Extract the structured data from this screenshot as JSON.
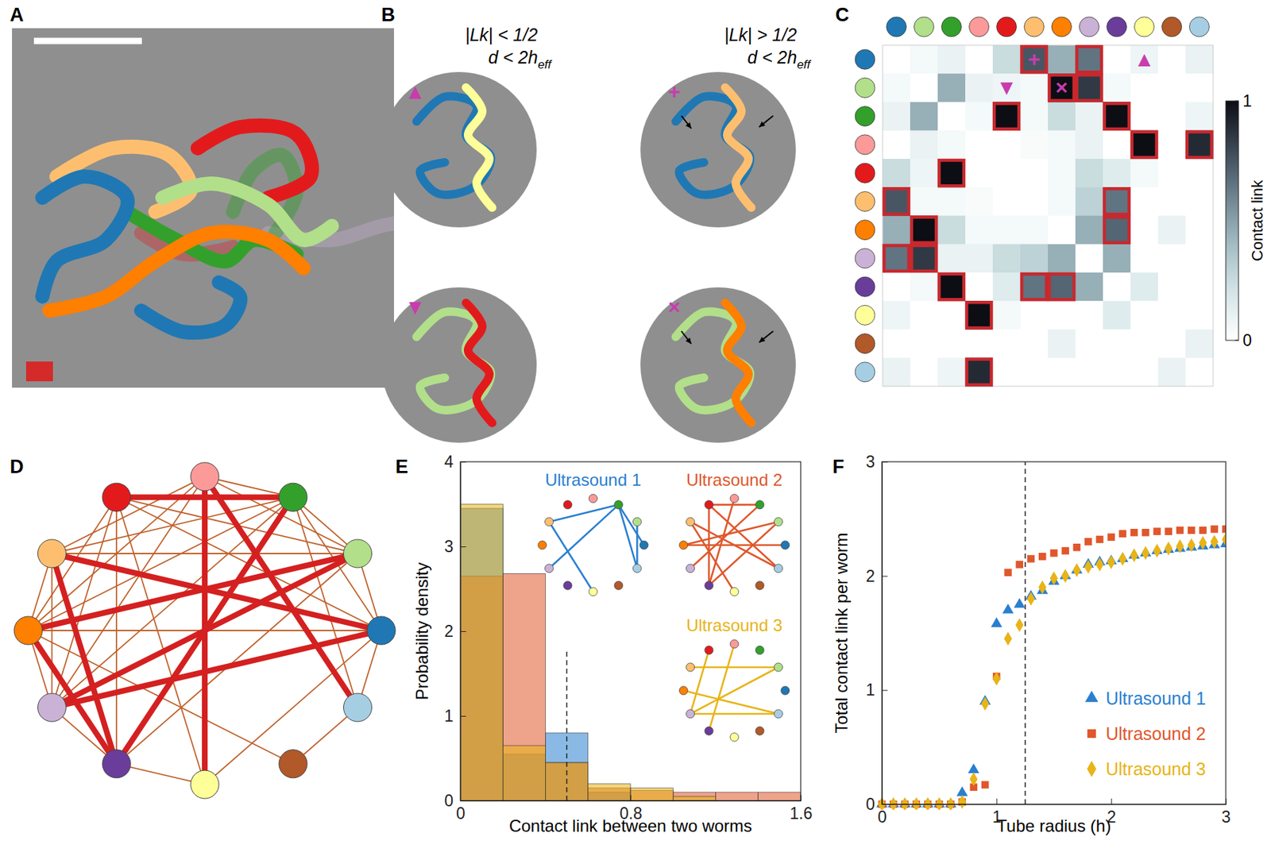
{
  "panels": [
    "A",
    "B",
    "C",
    "D",
    "E",
    "F"
  ],
  "worm_colors": [
    "#1f78b4",
    "#b2df8a",
    "#33a02c",
    "#fb9a99",
    "#e31a1c",
    "#fdbf6f",
    "#ff7f00",
    "#cab2d6",
    "#6a3d9a",
    "#ffff99",
    "#b15928",
    "#a6cee3"
  ],
  "panel_b": {
    "headers": [
      {
        "lk": "|Lk| < 1/2",
        "d": "d < 2h",
        "d_sub": "eff"
      },
      {
        "lk": "|Lk| > 1/2",
        "d": "d < 2h",
        "d_sub": "eff"
      }
    ],
    "examples": [
      {
        "marker": "▲",
        "pair": [
          9,
          0
        ],
        "column": 0
      },
      {
        "marker": "▼",
        "pair": [
          4,
          1
        ],
        "column": 0
      },
      {
        "marker": "+",
        "pair": [
          5,
          0
        ],
        "column": 1
      },
      {
        "marker": "×",
        "pair": [
          6,
          1
        ],
        "column": 1
      }
    ]
  },
  "chart_data": [
    {
      "type": "heatmap",
      "values": [
        [
          0,
          0.05,
          0.1,
          0,
          0.25,
          0.75,
          0.45,
          0.65,
          0,
          0.08,
          0,
          0.1
        ],
        [
          0.05,
          0,
          0.45,
          0.1,
          0.08,
          0.05,
          1,
          0.85,
          0.05,
          0,
          0,
          0
        ],
        [
          0.1,
          0.45,
          0,
          0.05,
          1,
          0.05,
          0.25,
          0.1,
          1,
          0,
          0,
          0.08
        ],
        [
          0,
          0.1,
          0.05,
          0,
          0,
          0.03,
          0.05,
          0.1,
          0,
          1,
          0,
          0.9
        ],
        [
          0.25,
          0.08,
          1,
          0,
          0,
          0,
          0.05,
          0.25,
          0.15,
          0.05,
          0,
          0
        ],
        [
          0.75,
          0.05,
          0.05,
          0.03,
          0,
          0,
          0.05,
          0.3,
          0.65,
          0,
          0,
          0
        ],
        [
          0.45,
          1,
          0.25,
          0.05,
          0.05,
          0.05,
          0,
          0.45,
          0.7,
          0,
          0.1,
          0
        ],
        [
          0.65,
          0.85,
          0.1,
          0.1,
          0.25,
          0.3,
          0.45,
          0,
          0.45,
          0,
          0,
          0
        ],
        [
          0,
          0.05,
          1,
          0,
          0.15,
          0.65,
          0.7,
          0.45,
          0,
          0.15,
          0,
          0
        ],
        [
          0.08,
          0,
          0,
          1,
          0.05,
          0,
          0,
          0,
          0.15,
          0,
          0,
          0
        ],
        [
          0,
          0,
          0,
          0,
          0,
          0,
          0.1,
          0,
          0,
          0,
          0,
          0.1
        ],
        [
          0.1,
          0,
          0.08,
          0.9,
          0,
          0,
          0,
          0,
          0,
          0,
          0.1,
          0
        ]
      ],
      "threshold": 0.5,
      "colorbar": {
        "range": [
          0,
          1
        ],
        "ticks": [
          0,
          1
        ],
        "label": "Contact link"
      },
      "markers": [
        {
          "symbol": "+",
          "row": 0,
          "col": 5
        },
        {
          "symbol": "▲",
          "row": 0,
          "col": 9
        },
        {
          "symbol": "▼",
          "row": 1,
          "col": 4
        },
        {
          "symbol": "×",
          "row": 1,
          "col": 6
        }
      ]
    },
    {
      "type": "network"
    },
    {
      "type": "histogram",
      "bins": [
        0,
        0.2,
        0.4,
        0.6,
        0.8,
        1.0,
        1.2,
        1.4,
        1.6
      ],
      "series": [
        {
          "name": "Ultrasound 1",
          "color": "#2a7fd0",
          "values": [
            3.45,
            0.55,
            0.8,
            0.1,
            0,
            0,
            0,
            0
          ],
          "edges": [
            [
              5,
              2
            ],
            [
              2,
              0
            ],
            [
              2,
              11
            ],
            [
              7,
              2
            ],
            [
              9,
              5
            ],
            [
              1,
              11
            ]
          ]
        },
        {
          "name": "Ultrasound 2",
          "color": "#e0572b",
          "values": [
            2.65,
            2.68,
            0.45,
            0.15,
            0.12,
            0.1,
            0.1,
            0.1
          ],
          "edges": [
            [
              4,
              2
            ],
            [
              3,
              8
            ],
            [
              6,
              1
            ],
            [
              6,
              0
            ],
            [
              5,
              11
            ],
            [
              4,
              11
            ],
            [
              7,
              2
            ],
            [
              8,
              1
            ],
            [
              8,
              4
            ],
            [
              5,
              9
            ]
          ]
        },
        {
          "name": "Ultrasound 3",
          "color": "#e8b417",
          "values": [
            3.5,
            0.65,
            0.45,
            0.2,
            0.15,
            0.05,
            0,
            0
          ],
          "edges": [
            [
              5,
              1
            ],
            [
              7,
              1
            ],
            [
              7,
              11
            ],
            [
              8,
              3
            ],
            [
              7,
              4
            ],
            [
              6,
              11
            ]
          ]
        }
      ],
      "xlim": [
        0,
        1.6
      ],
      "xticks": [
        0,
        0.8,
        1.6
      ],
      "ylim": [
        0,
        4
      ],
      "yticks": [
        0,
        1,
        2,
        3,
        4
      ],
      "x_label": "Contact link between two worms",
      "y_label": "Probability density",
      "threshold_line": {
        "x": 0.5,
        "ymax": 1.8
      }
    },
    {
      "type": "scatter",
      "x": [
        0,
        0.1,
        0.2,
        0.3,
        0.4,
        0.5,
        0.6,
        0.7,
        0.8,
        0.9,
        1.0,
        1.1,
        1.2,
        1.3,
        1.4,
        1.5,
        1.6,
        1.7,
        1.8,
        1.9,
        2.0,
        2.1,
        2.2,
        2.3,
        2.4,
        2.5,
        2.6,
        2.7,
        2.8,
        2.9,
        3.0
      ],
      "series": [
        {
          "name": "Ultrasound 1",
          "color": "#2a7fd0",
          "marker": "triangle",
          "values": [
            0,
            0,
            0,
            0,
            0,
            0,
            0,
            0.1,
            0.3,
            0.9,
            1.58,
            1.7,
            1.75,
            1.82,
            1.87,
            1.95,
            2.0,
            2.05,
            2.1,
            2.12,
            2.13,
            2.15,
            2.18,
            2.2,
            2.22,
            2.23,
            2.24,
            2.25,
            2.26,
            2.27,
            2.28
          ]
        },
        {
          "name": "Ultrasound 2",
          "color": "#e0572b",
          "marker": "square",
          "values": [
            0,
            0,
            0,
            0,
            0,
            0,
            0,
            0.02,
            0.15,
            0.17,
            1.12,
            2.03,
            2.1,
            2.15,
            2.17,
            2.2,
            2.22,
            2.25,
            2.3,
            2.32,
            2.34,
            2.37,
            2.38,
            2.38,
            2.39,
            2.39,
            2.4,
            2.4,
            2.4,
            2.41,
            2.41
          ]
        },
        {
          "name": "Ultrasound 3",
          "color": "#e8b417",
          "marker": "diamond",
          "values": [
            0,
            0,
            0,
            0,
            0,
            0,
            0,
            0.02,
            0.22,
            0.88,
            1.1,
            1.45,
            1.57,
            1.8,
            1.9,
            1.98,
            2.0,
            2.05,
            2.08,
            2.1,
            2.12,
            2.15,
            2.18,
            2.2,
            2.22,
            2.24,
            2.26,
            2.27,
            2.29,
            2.3,
            2.32
          ]
        }
      ],
      "xlim": [
        0,
        3
      ],
      "xticks": [
        0,
        1,
        2,
        3
      ],
      "ylim": [
        0,
        3
      ],
      "yticks": [
        0,
        1,
        2,
        3
      ],
      "x_label": "Tube radius (h)",
      "y_label": "Total contact link per worm",
      "threshold_line": {
        "x": 1.25
      },
      "legend": "lower right"
    }
  ]
}
